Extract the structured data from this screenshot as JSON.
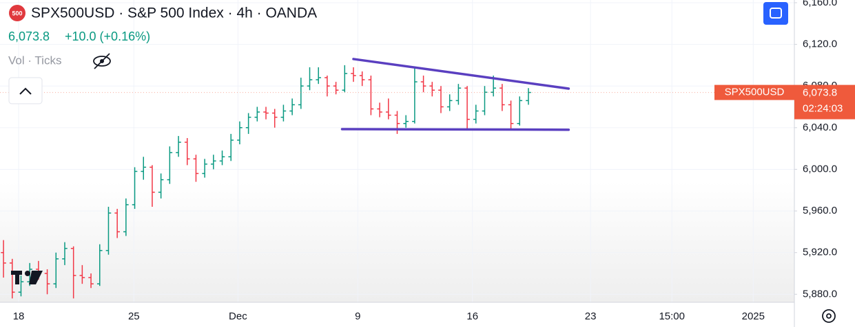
{
  "chart_data": {
    "type": "ohlc",
    "title": "SPX500USD · S&P 500 Index · 4h · OANDA",
    "symbol_icon": "500",
    "symbol": "SPX500USD",
    "last_price": {
      "value": 6073.8,
      "label": "6,073.8"
    },
    "change_label": "+10.0 (+0.16%)",
    "volume_label": "Vol · Ticks",
    "countdown": "02:24:03",
    "up_color": "#089981",
    "down_color": "#f23645",
    "grid": true,
    "open": [
      5920,
      5910,
      5882,
      5892,
      5904,
      5900,
      5890,
      5914,
      5924,
      5898,
      5896,
      5890,
      5922,
      5958,
      5940,
      5966,
      5998,
      6002,
      5978,
      5990,
      6016,
      6026,
      6010,
      5996,
      6005,
      6008,
      6012,
      6028,
      6040,
      6050,
      6055,
      6054,
      6050,
      6056,
      6062,
      6080,
      6086,
      6088,
      6080,
      6076,
      6092,
      6090,
      6086,
      6058,
      6055,
      6052,
      6044,
      6046,
      6084,
      6080,
      6076,
      6060,
      6066,
      6078,
      6048,
      6056,
      6074,
      6078,
      6062,
      6044,
      6066
    ],
    "high": [
      5932,
      5914,
      5898,
      5910,
      5912,
      5904,
      5920,
      5930,
      5926,
      5908,
      5900,
      5928,
      5964,
      5962,
      5972,
      6002,
      6012,
      6004,
      5996,
      6022,
      6032,
      6030,
      6014,
      6010,
      6014,
      6018,
      6034,
      6046,
      6054,
      6060,
      6060,
      6058,
      6062,
      6068,
      6088,
      6098,
      6098,
      6090,
      6084,
      6100,
      6098,
      6094,
      6090,
      6064,
      6068,
      6056,
      6052,
      6098,
      6090,
      6084,
      6080,
      6072,
      6082,
      6080,
      6062,
      6080,
      6090,
      6082,
      6066,
      6070,
      6078
    ],
    "low": [
      5896,
      5876,
      5878,
      5888,
      5894,
      5880,
      5886,
      5908,
      5876,
      5890,
      5886,
      5888,
      5918,
      5934,
      5936,
      5962,
      5990,
      5964,
      5972,
      5986,
      6012,
      6004,
      5988,
      5992,
      6000,
      6004,
      6008,
      6024,
      6034,
      6046,
      6048,
      6040,
      6046,
      6052,
      6058,
      6076,
      6082,
      6070,
      6072,
      6074,
      6084,
      6080,
      6052,
      6050,
      6048,
      6034,
      6040,
      6044,
      6074,
      6070,
      6054,
      6056,
      6062,
      6038,
      6044,
      6052,
      6070,
      6056,
      6038,
      6042,
      6062
    ],
    "close": [
      5910,
      5882,
      5892,
      5904,
      5900,
      5890,
      5914,
      5924,
      5898,
      5896,
      5890,
      5922,
      5958,
      5940,
      5966,
      5998,
      6002,
      5978,
      5990,
      6016,
      6026,
      6010,
      5996,
      6005,
      6008,
      6012,
      6028,
      6040,
      6050,
      6055,
      6054,
      6050,
      6056,
      6062,
      6080,
      6086,
      6088,
      6080,
      6076,
      6092,
      6090,
      6086,
      6058,
      6055,
      6052,
      6044,
      6046,
      6084,
      6080,
      6076,
      6060,
      6066,
      6078,
      6048,
      6056,
      6074,
      6078,
      6062,
      6044,
      6066,
      6073.8
    ],
    "trendlines": [
      {
        "color": "#5a3fc0",
        "points": [
          [
            40,
            6105.9
          ],
          [
            64.6,
            6077.5
          ]
        ]
      },
      {
        "color": "#5a3fc0",
        "points": [
          [
            38.7,
            6038.6
          ],
          [
            64.6,
            6038
          ]
        ]
      }
    ],
    "xlim": [
      -0.4,
      90.4
    ],
    "xticks": [
      {
        "value": 1.73,
        "label": "18"
      },
      {
        "value": 14.9,
        "label": "25"
      },
      {
        "value": 26.8,
        "label": "Dec"
      },
      {
        "value": 40.5,
        "label": "9"
      },
      {
        "value": 53.6,
        "label": "16"
      },
      {
        "value": 67.1,
        "label": "23"
      },
      {
        "value": 76.4,
        "label": "15:00"
      },
      {
        "value": 85.7,
        "label": "2025"
      }
    ],
    "ylim": [
      5872.3,
      6162.6
    ],
    "yticks": [
      {
        "value": 5880,
        "label": "5,880.0"
      },
      {
        "value": 5920,
        "label": "5,920.0"
      },
      {
        "value": 5960,
        "label": "5,960.0"
      },
      {
        "value": 6000,
        "label": "6,000.0"
      },
      {
        "value": 6040,
        "label": "6,040.0"
      },
      {
        "value": 6080,
        "label": "6,080.0"
      },
      {
        "value": 6120,
        "label": "6,120.0"
      },
      {
        "value": 6160,
        "label": "6,160.0"
      }
    ]
  }
}
